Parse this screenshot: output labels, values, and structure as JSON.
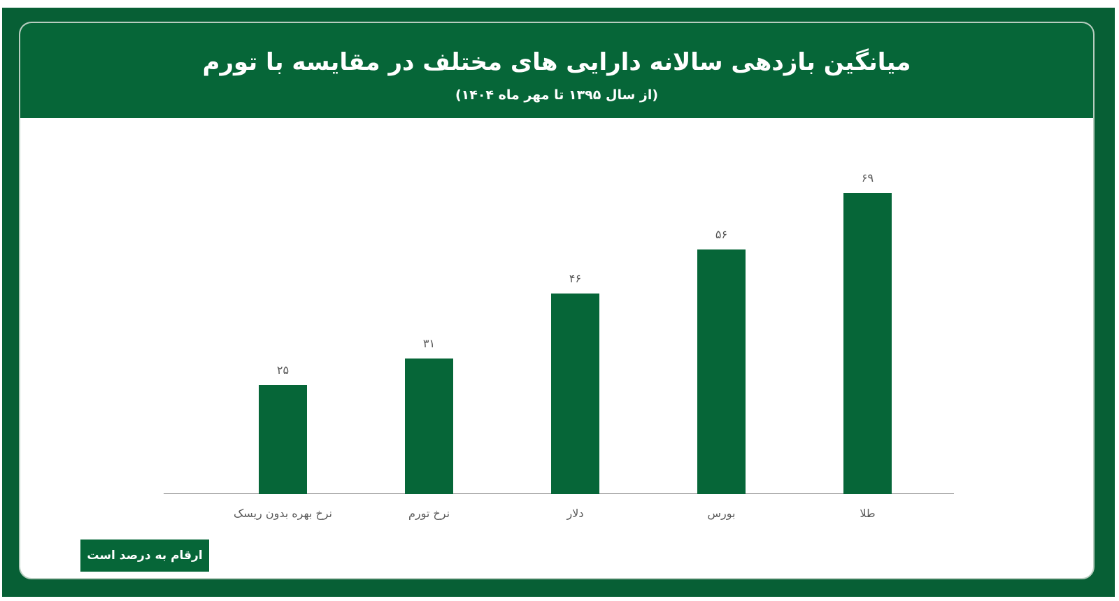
{
  "header": {
    "title": "میانگین بازدهی سالانه دارایی های مختلف در مقایسه با تورم",
    "subtitle": "(از سال ۱۳۹۵ تا مهر ماه ۱۴۰۴)"
  },
  "note": "ارقام به درصد است",
  "colors": {
    "bar": "#066638",
    "frame": "#075f35",
    "header": "#066638"
  },
  "bars": [
    {
      "category": "نرخ بهره بدون ریسک",
      "label": "۲۵",
      "value": 25
    },
    {
      "category": "نرخ تورم",
      "label": "۳۱",
      "value": 31
    },
    {
      "category": "دلار",
      "label": "۴۶",
      "value": 46
    },
    {
      "category": "بورس",
      "label": "۵۶",
      "value": 56
    },
    {
      "category": "طلا",
      "label": "۶۹",
      "value": 69
    }
  ],
  "chart_data": {
    "type": "bar",
    "title": "میانگین بازدهی سالانه دارایی های مختلف در مقایسه با تورم",
    "subtitle": "(از سال ۱۳۹۵ تا مهر ماه ۱۴۰۴)",
    "categories": [
      "نرخ بهره بدون ریسک",
      "نرخ تورم",
      "دلار",
      "بورس",
      "طلا"
    ],
    "values": [
      25,
      31,
      46,
      56,
      69
    ],
    "value_labels": [
      "۲۵",
      "۳۱",
      "۴۶",
      "۵۶",
      "۶۹"
    ],
    "xlabel": "",
    "ylabel": "",
    "ylim": [
      0,
      70
    ],
    "grid": false,
    "legend": null,
    "annotations": [
      "ارقام به درصد است"
    ]
  }
}
